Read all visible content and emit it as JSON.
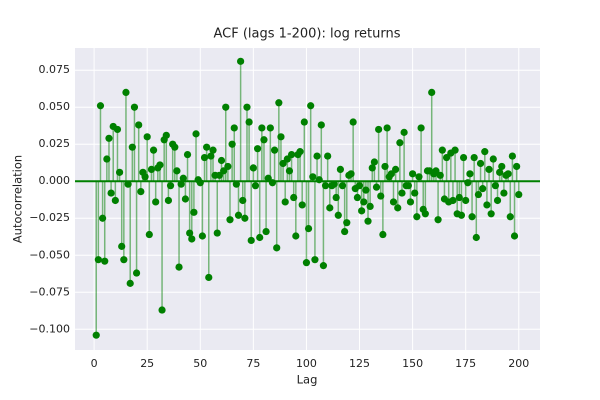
{
  "chart_data": {
    "type": "stem",
    "title": "ACF (lags 1-200): log returns",
    "x_label": "Lag",
    "y_label": "Autocorrelation",
    "x": [
      1,
      2,
      3,
      4,
      5,
      6,
      7,
      8,
      9,
      10,
      11,
      12,
      13,
      14,
      15,
      16,
      17,
      18,
      19,
      20,
      21,
      22,
      23,
      24,
      25,
      26,
      27,
      28,
      29,
      30,
      31,
      32,
      33,
      34,
      35,
      36,
      37,
      38,
      39,
      40,
      41,
      42,
      43,
      44,
      45,
      46,
      47,
      48,
      49,
      50,
      51,
      52,
      53,
      54,
      55,
      56,
      57,
      58,
      59,
      60,
      61,
      62,
      63,
      64,
      65,
      66,
      67,
      68,
      69,
      70,
      71,
      72,
      73,
      74,
      75,
      76,
      77,
      78,
      79,
      80,
      81,
      82,
      83,
      84,
      85,
      86,
      87,
      88,
      89,
      90,
      91,
      92,
      93,
      94,
      95,
      96,
      97,
      98,
      99,
      100,
      101,
      102,
      103,
      104,
      105,
      106,
      107,
      108,
      109,
      110,
      111,
      112,
      113,
      114,
      115,
      116,
      117,
      118,
      119,
      120,
      121,
      122,
      123,
      124,
      125,
      126,
      127,
      128,
      129,
      130,
      131,
      132,
      133,
      134,
      135,
      136,
      137,
      138,
      139,
      140,
      141,
      142,
      143,
      144,
      145,
      146,
      147,
      148,
      149,
      150,
      151,
      152,
      153,
      154,
      155,
      156,
      157,
      158,
      159,
      160,
      161,
      162,
      163,
      164,
      165,
      166,
      167,
      168,
      169,
      170,
      171,
      172,
      173,
      174,
      175,
      176,
      177,
      178,
      179,
      180,
      181,
      182,
      183,
      184,
      185,
      186,
      187,
      188,
      189,
      190,
      191,
      192,
      193,
      194,
      195,
      196,
      197,
      198,
      199,
      200
    ],
    "values": [
      -0.104,
      -0.053,
      0.051,
      -0.025,
      -0.054,
      0.015,
      0.029,
      -0.008,
      0.037,
      -0.013,
      0.035,
      0.006,
      -0.044,
      -0.053,
      0.06,
      -0.002,
      -0.069,
      0.023,
      0.05,
      -0.062,
      0.038,
      -0.007,
      0.006,
      0.003,
      0.03,
      -0.036,
      0.008,
      0.021,
      -0.014,
      0.009,
      0.011,
      -0.087,
      0.028,
      0.031,
      -0.013,
      -0.003,
      0.025,
      0.023,
      0.007,
      -0.058,
      -0.002,
      0.002,
      -0.012,
      0.018,
      -0.035,
      -0.039,
      -0.021,
      0.032,
      0.001,
      -0.001,
      -0.037,
      0.016,
      0.023,
      -0.065,
      0.017,
      0.021,
      0.004,
      -0.035,
      0.004,
      0.014,
      0.007,
      0.05,
      0.01,
      -0.026,
      0.025,
      0.036,
      -0.002,
      -0.023,
      0.081,
      -0.013,
      -0.025,
      0.05,
      0.04,
      -0.04,
      0.009,
      -0.003,
      0.022,
      -0.038,
      0.036,
      0.028,
      -0.034,
      0.002,
      0.036,
      -0.001,
      0.021,
      -0.045,
      0.053,
      0.03,
      0.012,
      -0.014,
      0.015,
      0.007,
      0.018,
      -0.011,
      -0.037,
      0.018,
      0.02,
      -0.016,
      0.04,
      -0.055,
      -0.032,
      0.051,
      0.003,
      -0.053,
      0.017,
      0.001,
      0.038,
      -0.057,
      -0.003,
      0.017,
      -0.018,
      -0.003,
      -0.002,
      -0.011,
      -0.023,
      0.008,
      -0.003,
      -0.034,
      -0.028,
      0.004,
      0.005,
      0.04,
      -0.005,
      -0.011,
      -0.003,
      -0.02,
      -0.014,
      -0.006,
      -0.027,
      -0.017,
      0.009,
      0.013,
      -0.004,
      0.035,
      -0.01,
      -0.036,
      0.01,
      0.036,
      0.003,
      0.005,
      -0.014,
      0.008,
      -0.018,
      0.026,
      -0.008,
      0.033,
      -0.003,
      -0.003,
      -0.014,
      0.005,
      -0.008,
      -0.024,
      0.003,
      0.036,
      -0.019,
      -0.022,
      0.007,
      0.007,
      0.06,
      0.005,
      0.007,
      -0.026,
      0.004,
      0.021,
      -0.012,
      0.016,
      -0.014,
      0.019,
      -0.013,
      0.021,
      -0.022,
      -0.011,
      -0.023,
      0.016,
      -0.013,
      -0.001,
      0.005,
      -0.024,
      0.016,
      -0.038,
      -0.009,
      0.012,
      -0.005,
      0.02,
      -0.016,
      0.008,
      -0.022,
      0.015,
      -0.003,
      -0.013,
      0.006,
      0.01,
      -0.008,
      0.004,
      0.005,
      -0.024,
      0.017,
      -0.037,
      0.01,
      -0.009
    ],
    "color": "#008000",
    "xlim": [
      -9,
      210
    ],
    "xticks": [
      0,
      25,
      50,
      75,
      100,
      125,
      150,
      175,
      200
    ],
    "ylim": [
      -0.114,
      0.09
    ],
    "yticks": [
      {
        "value": -0.1,
        "label": "−0.100"
      },
      {
        "value": -0.075,
        "label": "−0.075"
      },
      {
        "value": -0.05,
        "label": "−0.050"
      },
      {
        "value": -0.025,
        "label": "−0.025"
      },
      {
        "value": 0,
        "label": "0.000"
      },
      {
        "value": 0.025,
        "label": "0.025"
      },
      {
        "value": 0.05,
        "label": "0.050"
      },
      {
        "value": 0.075,
        "label": "0.075"
      }
    ],
    "grid": true
  }
}
